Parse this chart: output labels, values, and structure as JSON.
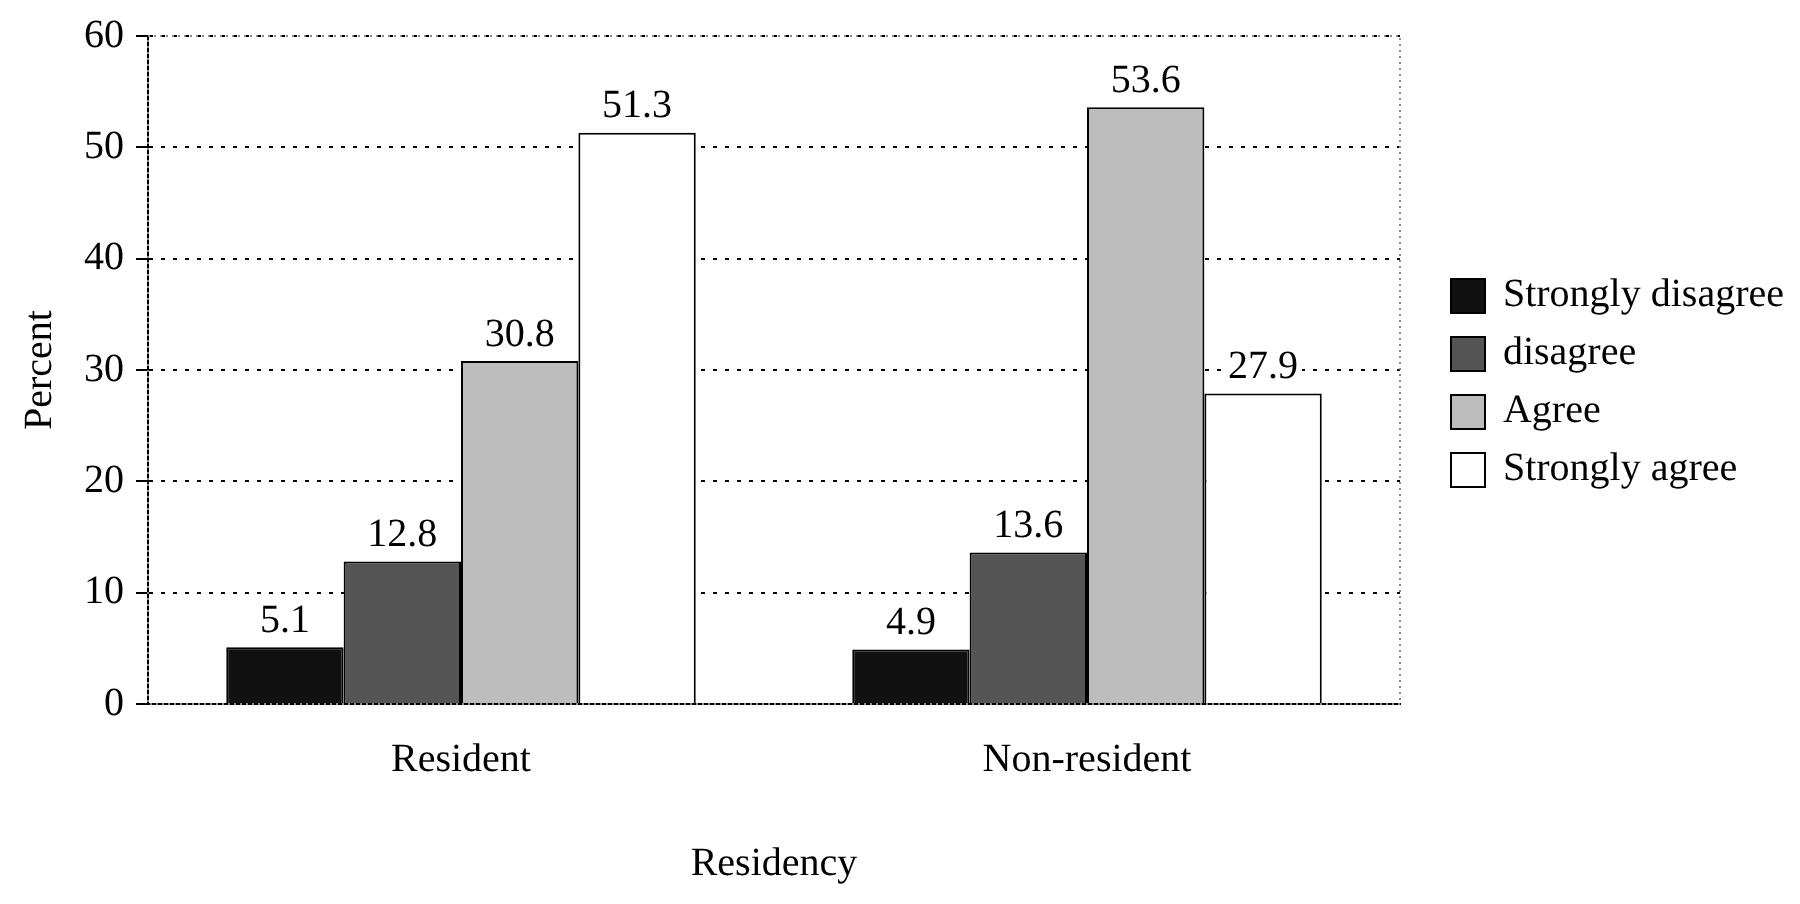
{
  "chart_data": {
    "type": "bar",
    "xlabel": "Residency",
    "ylabel": "Percent",
    "categories": [
      "Resident",
      "Non-resident"
    ],
    "series": [
      {
        "name": "Strongly disagree",
        "color": "#111111",
        "values": [
          5.1,
          4.9
        ]
      },
      {
        "name": "disagree",
        "color": "#555555",
        "values": [
          12.8,
          13.6
        ]
      },
      {
        "name": "Agree",
        "color": "#bdbdbd",
        "values": [
          30.8,
          53.6
        ]
      },
      {
        "name": "Strongly agree",
        "color": "#ffffff",
        "values": [
          51.3,
          27.9
        ]
      }
    ],
    "ylim": [
      0,
      60
    ],
    "yticks": [
      0,
      10,
      20,
      30,
      40,
      50,
      60
    ],
    "grid": "y",
    "legend": "right",
    "data_labels": true
  }
}
